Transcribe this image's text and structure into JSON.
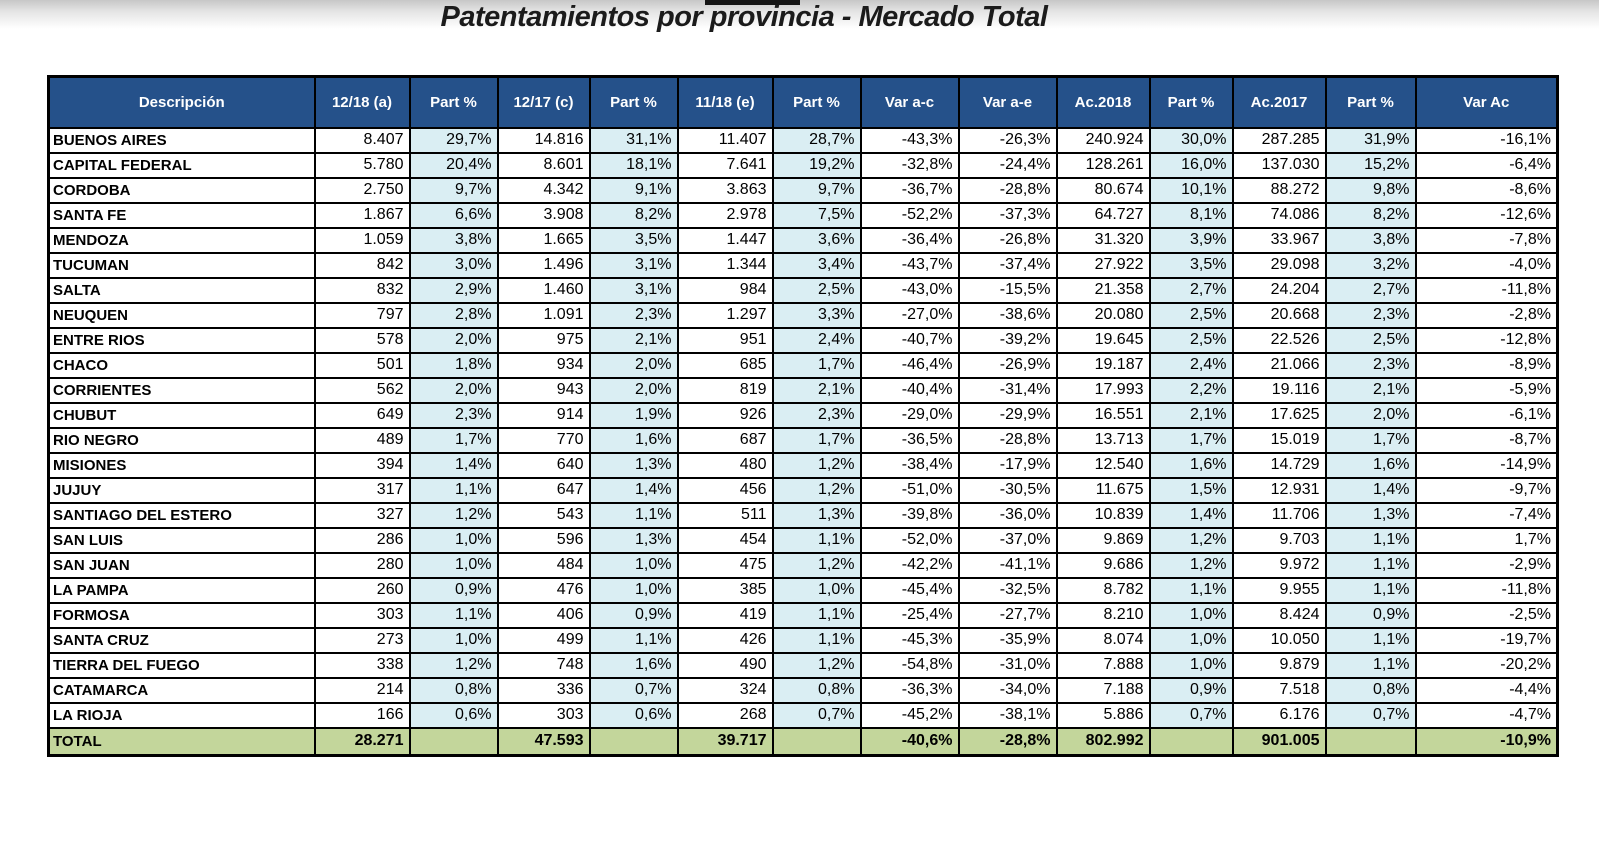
{
  "page": {
    "title": "Patentamientos por provincia - Mercado Total"
  },
  "colors": {
    "header_bg": "#25518a",
    "part_pct_bg": "#daeef3",
    "total_bg": "#c3d69b",
    "border": "#000000"
  },
  "table": {
    "columns": [
      "Descripción",
      "12/18 (a)",
      "Part %",
      "12/17 (c)",
      "Part %",
      "11/18 (e)",
      "Part %",
      "Var a-c",
      "Var a-e",
      "Ac.2018",
      "Part %",
      "Ac.2017",
      "Part %",
      "Var Ac"
    ],
    "pct_column_indexes": [
      2,
      4,
      6,
      10,
      12
    ],
    "rows": [
      [
        "BUENOS AIRES",
        "8.407",
        "29,7%",
        "14.816",
        "31,1%",
        "11.407",
        "28,7%",
        "-43,3%",
        "-26,3%",
        "240.924",
        "30,0%",
        "287.285",
        "31,9%",
        "-16,1%"
      ],
      [
        "CAPITAL FEDERAL",
        "5.780",
        "20,4%",
        "8.601",
        "18,1%",
        "7.641",
        "19,2%",
        "-32,8%",
        "-24,4%",
        "128.261",
        "16,0%",
        "137.030",
        "15,2%",
        "-6,4%"
      ],
      [
        "CORDOBA",
        "2.750",
        "9,7%",
        "4.342",
        "9,1%",
        "3.863",
        "9,7%",
        "-36,7%",
        "-28,8%",
        "80.674",
        "10,1%",
        "88.272",
        "9,8%",
        "-8,6%"
      ],
      [
        "SANTA FE",
        "1.867",
        "6,6%",
        "3.908",
        "8,2%",
        "2.978",
        "7,5%",
        "-52,2%",
        "-37,3%",
        "64.727",
        "8,1%",
        "74.086",
        "8,2%",
        "-12,6%"
      ],
      [
        "MENDOZA",
        "1.059",
        "3,8%",
        "1.665",
        "3,5%",
        "1.447",
        "3,6%",
        "-36,4%",
        "-26,8%",
        "31.320",
        "3,9%",
        "33.967",
        "3,8%",
        "-7,8%"
      ],
      [
        "TUCUMAN",
        "842",
        "3,0%",
        "1.496",
        "3,1%",
        "1.344",
        "3,4%",
        "-43,7%",
        "-37,4%",
        "27.922",
        "3,5%",
        "29.098",
        "3,2%",
        "-4,0%"
      ],
      [
        "SALTA",
        "832",
        "2,9%",
        "1.460",
        "3,1%",
        "984",
        "2,5%",
        "-43,0%",
        "-15,5%",
        "21.358",
        "2,7%",
        "24.204",
        "2,7%",
        "-11,8%"
      ],
      [
        "NEUQUEN",
        "797",
        "2,8%",
        "1.091",
        "2,3%",
        "1.297",
        "3,3%",
        "-27,0%",
        "-38,6%",
        "20.080",
        "2,5%",
        "20.668",
        "2,3%",
        "-2,8%"
      ],
      [
        "ENTRE RIOS",
        "578",
        "2,0%",
        "975",
        "2,1%",
        "951",
        "2,4%",
        "-40,7%",
        "-39,2%",
        "19.645",
        "2,5%",
        "22.526",
        "2,5%",
        "-12,8%"
      ],
      [
        "CHACO",
        "501",
        "1,8%",
        "934",
        "2,0%",
        "685",
        "1,7%",
        "-46,4%",
        "-26,9%",
        "19.187",
        "2,4%",
        "21.066",
        "2,3%",
        "-8,9%"
      ],
      [
        "CORRIENTES",
        "562",
        "2,0%",
        "943",
        "2,0%",
        "819",
        "2,1%",
        "-40,4%",
        "-31,4%",
        "17.993",
        "2,2%",
        "19.116",
        "2,1%",
        "-5,9%"
      ],
      [
        "CHUBUT",
        "649",
        "2,3%",
        "914",
        "1,9%",
        "926",
        "2,3%",
        "-29,0%",
        "-29,9%",
        "16.551",
        "2,1%",
        "17.625",
        "2,0%",
        "-6,1%"
      ],
      [
        "RIO NEGRO",
        "489",
        "1,7%",
        "770",
        "1,6%",
        "687",
        "1,7%",
        "-36,5%",
        "-28,8%",
        "13.713",
        "1,7%",
        "15.019",
        "1,7%",
        "-8,7%"
      ],
      [
        "MISIONES",
        "394",
        "1,4%",
        "640",
        "1,3%",
        "480",
        "1,2%",
        "-38,4%",
        "-17,9%",
        "12.540",
        "1,6%",
        "14.729",
        "1,6%",
        "-14,9%"
      ],
      [
        "JUJUY",
        "317",
        "1,1%",
        "647",
        "1,4%",
        "456",
        "1,2%",
        "-51,0%",
        "-30,5%",
        "11.675",
        "1,5%",
        "12.931",
        "1,4%",
        "-9,7%"
      ],
      [
        "SANTIAGO DEL ESTERO",
        "327",
        "1,2%",
        "543",
        "1,1%",
        "511",
        "1,3%",
        "-39,8%",
        "-36,0%",
        "10.839",
        "1,4%",
        "11.706",
        "1,3%",
        "-7,4%"
      ],
      [
        "SAN LUIS",
        "286",
        "1,0%",
        "596",
        "1,3%",
        "454",
        "1,1%",
        "-52,0%",
        "-37,0%",
        "9.869",
        "1,2%",
        "9.703",
        "1,1%",
        "1,7%"
      ],
      [
        "SAN JUAN",
        "280",
        "1,0%",
        "484",
        "1,0%",
        "475",
        "1,2%",
        "-42,2%",
        "-41,1%",
        "9.686",
        "1,2%",
        "9.972",
        "1,1%",
        "-2,9%"
      ],
      [
        "LA PAMPA",
        "260",
        "0,9%",
        "476",
        "1,0%",
        "385",
        "1,0%",
        "-45,4%",
        "-32,5%",
        "8.782",
        "1,1%",
        "9.955",
        "1,1%",
        "-11,8%"
      ],
      [
        "FORMOSA",
        "303",
        "1,1%",
        "406",
        "0,9%",
        "419",
        "1,1%",
        "-25,4%",
        "-27,7%",
        "8.210",
        "1,0%",
        "8.424",
        "0,9%",
        "-2,5%"
      ],
      [
        "SANTA CRUZ",
        "273",
        "1,0%",
        "499",
        "1,1%",
        "426",
        "1,1%",
        "-45,3%",
        "-35,9%",
        "8.074",
        "1,0%",
        "10.050",
        "1,1%",
        "-19,7%"
      ],
      [
        "TIERRA DEL FUEGO",
        "338",
        "1,2%",
        "748",
        "1,6%",
        "490",
        "1,2%",
        "-54,8%",
        "-31,0%",
        "7.888",
        "1,0%",
        "9.879",
        "1,1%",
        "-20,2%"
      ],
      [
        "CATAMARCA",
        "214",
        "0,8%",
        "336",
        "0,7%",
        "324",
        "0,8%",
        "-36,3%",
        "-34,0%",
        "7.188",
        "0,9%",
        "7.518",
        "0,8%",
        "-4,4%"
      ],
      [
        "LA RIOJA",
        "166",
        "0,6%",
        "303",
        "0,6%",
        "268",
        "0,7%",
        "-45,2%",
        "-38,1%",
        "5.886",
        "0,7%",
        "6.176",
        "0,7%",
        "-4,7%"
      ]
    ],
    "total_row": [
      "TOTAL",
      "28.271",
      "",
      "47.593",
      "",
      "39.717",
      "",
      "-40,6%",
      "-28,8%",
      "802.992",
      "",
      "901.005",
      "",
      "-10,9%"
    ]
  }
}
